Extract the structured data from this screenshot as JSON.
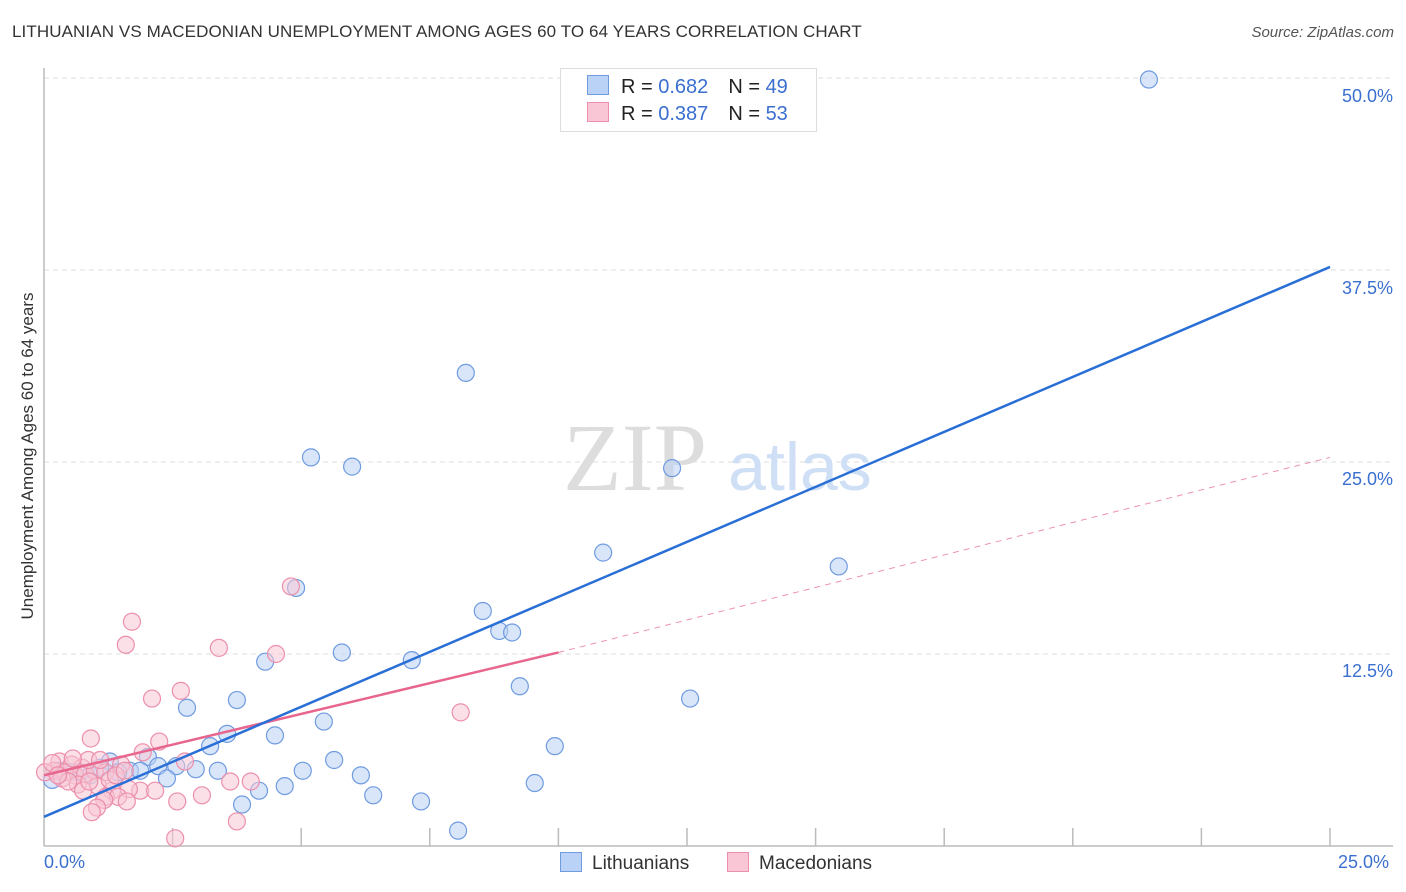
{
  "chart_data": {
    "type": "scatter",
    "title": "LITHUANIAN VS MACEDONIAN UNEMPLOYMENT AMONG AGES 60 TO 64 YEARS CORRELATION CHART",
    "source": "Source: ZipAtlas.com",
    "xlabel": "",
    "ylabel": "Unemployment Among Ages 60 to 64 years",
    "xlim": [
      0,
      25
    ],
    "ylim": [
      0,
      50
    ],
    "x_tick_labels": [
      "0.0%",
      "25.0%"
    ],
    "y_ticks": [
      12.5,
      25,
      37.5,
      50
    ],
    "y_tick_labels": [
      "12.5%",
      "25.0%",
      "37.5%",
      "50.0%"
    ],
    "grid": true,
    "legend_position": "top-center",
    "watermark": "ZIPatlas",
    "legend": [
      {
        "r_label": "R = ",
        "r": "0.682",
        "n_label": "N = ",
        "n": "49"
      },
      {
        "r_label": "R = ",
        "r": "0.387",
        "n_label": "N = ",
        "n": "53"
      }
    ],
    "series": [
      {
        "name": "Lithuanians",
        "color": "#6f9be0",
        "fill": "#b9d2f5",
        "line_color": "#2a6fd6",
        "trend": {
          "x0": 0,
          "y0": 1.9,
          "x1": 25,
          "y1": 37.7
        },
        "points": [
          [
            21.48,
            49.9
          ],
          [
            8.2,
            30.8
          ],
          [
            5.19,
            25.3
          ],
          [
            5.99,
            24.7
          ],
          [
            12.21,
            24.6
          ],
          [
            10.87,
            19.1
          ],
          [
            15.45,
            18.2
          ],
          [
            4.9,
            16.8
          ],
          [
            8.53,
            15.3
          ],
          [
            8.85,
            14.0
          ],
          [
            9.1,
            13.9
          ],
          [
            5.79,
            12.6
          ],
          [
            4.3,
            12.0
          ],
          [
            7.15,
            12.1
          ],
          [
            9.25,
            10.4
          ],
          [
            12.56,
            9.6
          ],
          [
            3.75,
            9.5
          ],
          [
            2.78,
            9.0
          ],
          [
            5.44,
            8.1
          ],
          [
            3.56,
            7.3
          ],
          [
            4.49,
            7.2
          ],
          [
            3.23,
            6.5
          ],
          [
            9.93,
            6.5
          ],
          [
            2.02,
            5.8
          ],
          [
            5.64,
            5.6
          ],
          [
            1.28,
            5.5
          ],
          [
            2.22,
            5.2
          ],
          [
            2.57,
            5.2
          ],
          [
            2.95,
            5.0
          ],
          [
            3.38,
            4.9
          ],
          [
            5.03,
            4.9
          ],
          [
            1.67,
            4.9
          ],
          [
            1.87,
            4.9
          ],
          [
            1.44,
            4.8
          ],
          [
            6.16,
            4.6
          ],
          [
            2.39,
            4.4
          ],
          [
            9.54,
            4.1
          ],
          [
            4.68,
            3.9
          ],
          [
            4.18,
            3.6
          ],
          [
            6.4,
            3.3
          ],
          [
            3.85,
            2.7
          ],
          [
            7.33,
            2.9
          ],
          [
            8.05,
            1.0
          ],
          [
            0.16,
            4.3
          ],
          [
            0.3,
            4.9
          ],
          [
            0.5,
            4.8
          ],
          [
            0.7,
            4.8
          ],
          [
            0.9,
            4.6
          ],
          [
            1.09,
            5.1
          ]
        ]
      },
      {
        "name": "Macedonians",
        "color": "#ec8fab",
        "fill": "#f8c6d5",
        "line_color": "#e8668e",
        "trend": {
          "x0": 0,
          "y0": 4.6,
          "x1": 10,
          "y1": 12.6,
          "dashed_to_x": 25,
          "dashed_to_y": 25.3
        },
        "points": [
          [
            4.8,
            16.9
          ],
          [
            1.71,
            14.6
          ],
          [
            1.59,
            13.1
          ],
          [
            3.4,
            12.9
          ],
          [
            4.51,
            12.5
          ],
          [
            2.66,
            10.1
          ],
          [
            2.1,
            9.6
          ],
          [
            8.1,
            8.7
          ],
          [
            0.91,
            7.0
          ],
          [
            2.24,
            6.8
          ],
          [
            1.92,
            6.1
          ],
          [
            2.74,
            5.5
          ],
          [
            1.5,
            5.3
          ],
          [
            0.3,
            5.5
          ],
          [
            0.54,
            5.3
          ],
          [
            0.74,
            5.1
          ],
          [
            0.2,
            4.9
          ],
          [
            0.4,
            4.8
          ],
          [
            0.6,
            4.6
          ],
          [
            0.8,
            4.7
          ],
          [
            0.99,
            4.9
          ],
          [
            1.19,
            4.8
          ],
          [
            0.66,
            4.0
          ],
          [
            1.05,
            3.9
          ],
          [
            1.32,
            3.6
          ],
          [
            3.62,
            4.2
          ],
          [
            4.02,
            4.2
          ],
          [
            1.87,
            3.6
          ],
          [
            2.16,
            3.6
          ],
          [
            1.65,
            3.7
          ],
          [
            1.2,
            3.2
          ],
          [
            3.07,
            3.3
          ],
          [
            1.44,
            3.2
          ],
          [
            1.61,
            2.9
          ],
          [
            1.17,
            3.0
          ],
          [
            2.59,
            2.9
          ],
          [
            1.03,
            2.5
          ],
          [
            0.93,
            2.2
          ],
          [
            3.75,
            1.6
          ],
          [
            2.55,
            0.5
          ],
          [
            0.02,
            4.8
          ],
          [
            0.16,
            5.4
          ],
          [
            0.35,
            4.4
          ],
          [
            0.86,
            5.6
          ],
          [
            1.28,
            4.3
          ],
          [
            0.47,
            4.2
          ],
          [
            0.27,
            4.6
          ],
          [
            1.09,
            5.6
          ],
          [
            1.4,
            4.6
          ],
          [
            0.76,
            3.6
          ],
          [
            0.56,
            5.7
          ],
          [
            0.88,
            4.2
          ],
          [
            1.57,
            4.9
          ]
        ]
      }
    ]
  }
}
